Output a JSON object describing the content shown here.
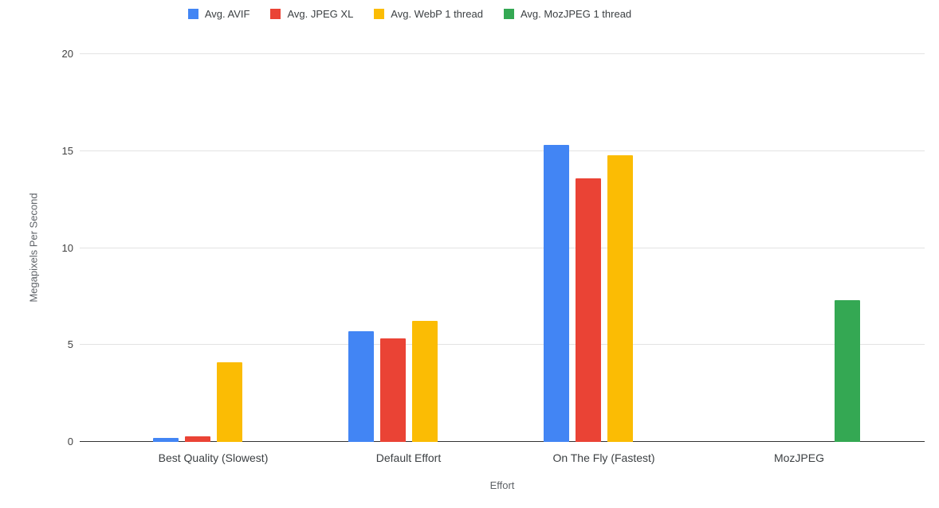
{
  "chart_data": {
    "type": "bar",
    "title": "",
    "xlabel": "Effort",
    "ylabel": "Megapixels Per Second",
    "ylim": [
      0,
      20
    ],
    "yticks": [
      0,
      5,
      10,
      15,
      20
    ],
    "grid": true,
    "legend_position": "top",
    "categories": [
      "Best Quality (Slowest)",
      "Default Effort",
      "On The Fly (Fastest)",
      "MozJPEG"
    ],
    "series": [
      {
        "name": "Avg. AVIF",
        "color": "#4285F4",
        "values": [
          0.2,
          5.7,
          15.3,
          null
        ]
      },
      {
        "name": "Avg. JPEG XL",
        "color": "#EA4335",
        "values": [
          0.3,
          5.35,
          13.6,
          null
        ]
      },
      {
        "name": "Avg. WebP 1 thread",
        "color": "#FBBC04",
        "values": [
          4.1,
          6.25,
          14.8,
          null
        ]
      },
      {
        "name": "Avg. MozJPEG 1 thread",
        "color": "#34A853",
        "values": [
          null,
          null,
          null,
          7.3
        ]
      }
    ]
  }
}
